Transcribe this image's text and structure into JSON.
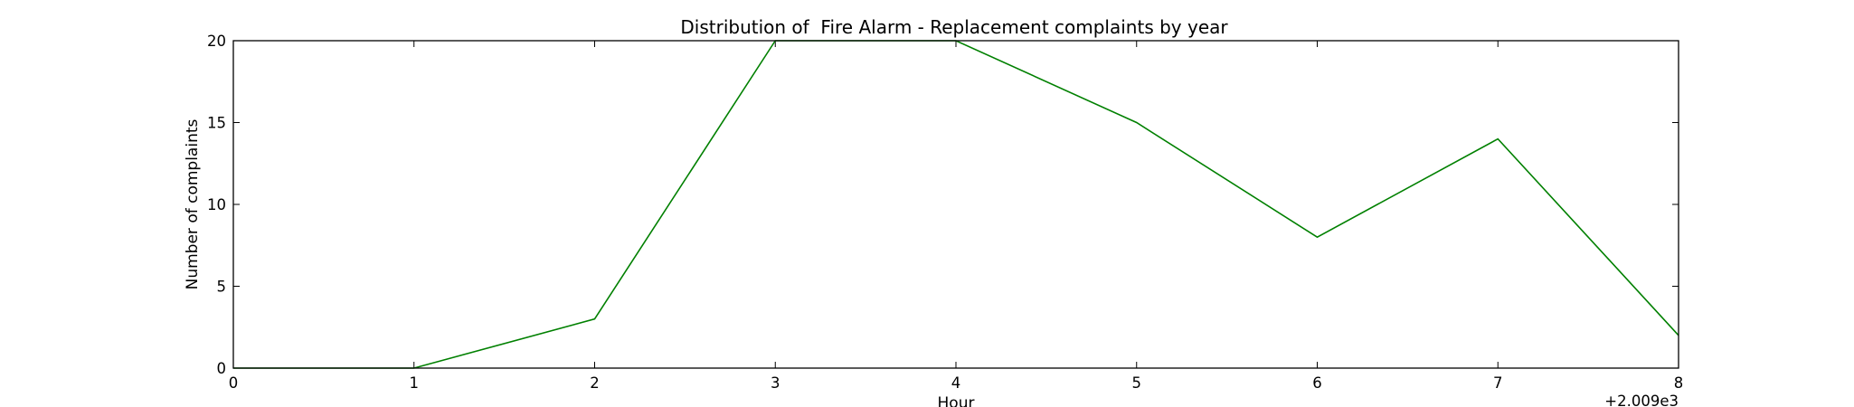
{
  "chart_data": {
    "type": "line",
    "title": "Distribution of  Fire Alarm - Replacement complaints by year",
    "xlabel": "Hour",
    "ylabel": "Number of complaints",
    "x_offset_label": "+2.009e3",
    "xlim": [
      0,
      8
    ],
    "ylim": [
      0,
      20
    ],
    "x_ticks": [
      0,
      1,
      2,
      3,
      4,
      5,
      6,
      7,
      8
    ],
    "x_tick_labels": [
      "0",
      "1",
      "2",
      "3",
      "4",
      "5",
      "6",
      "7",
      "8"
    ],
    "y_ticks": [
      0,
      5,
      10,
      15,
      20
    ],
    "y_tick_labels": [
      "0",
      "5",
      "10",
      "15",
      "20"
    ],
    "grid": false,
    "series": [
      {
        "color": "#008000",
        "x": [
          0,
          1,
          2,
          3,
          4,
          5,
          6,
          7,
          8
        ],
        "values": [
          0,
          0,
          3,
          20,
          20,
          15,
          8,
          14,
          2
        ]
      }
    ]
  }
}
